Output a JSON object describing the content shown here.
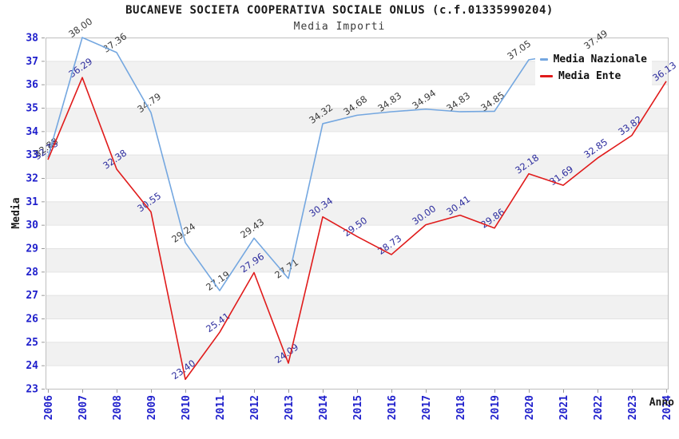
{
  "header": {
    "title": "BUCANEVE SOCIETA COOPERATIVA SOCIALE ONLUS (c.f.01335990204)",
    "subtitle": "Media Importi"
  },
  "legend": {
    "items": [
      {
        "label": "Media Nazionale",
        "color": "#74a7e0"
      },
      {
        "label": "Media Ente",
        "color": "#e01b1b"
      }
    ]
  },
  "chart_data": {
    "type": "line",
    "x": [
      2006,
      2007,
      2008,
      2009,
      2010,
      2011,
      2012,
      2013,
      2014,
      2015,
      2016,
      2017,
      2018,
      2019,
      2020,
      2021,
      2022,
      2023,
      2024
    ],
    "xlabel": "Anno",
    "ylabel": "Media",
    "ylim": [
      23,
      38
    ],
    "yticks": [
      23,
      24,
      25,
      26,
      27,
      28,
      29,
      30,
      31,
      32,
      33,
      34,
      35,
      36,
      37,
      38
    ],
    "grid": "horizontal-bands",
    "legend_position": "top-right-overlay",
    "series": [
      {
        "name": "Media Nazionale",
        "color": "#74a7e0",
        "label_color": "#3b3b3b",
        "values": [
          32.88,
          38.0,
          37.36,
          34.79,
          29.24,
          27.19,
          29.43,
          27.71,
          34.32,
          34.68,
          34.83,
          34.94,
          34.83,
          34.85,
          37.05,
          null,
          37.49,
          null,
          null
        ]
      },
      {
        "name": "Media Ente",
        "color": "#e01b1b",
        "label_color": "#2d2d9e",
        "values": [
          32.78,
          36.29,
          32.38,
          30.55,
          23.4,
          25.41,
          27.96,
          24.09,
          30.34,
          29.5,
          28.73,
          30.0,
          30.41,
          29.86,
          32.18,
          31.69,
          32.85,
          33.82,
          36.13
        ]
      }
    ],
    "band_color": "#f1f1f1",
    "gridline_color": "#e3e3e3",
    "border_color": "#bfbfbf",
    "tick_text_color": "#1f1fcc"
  }
}
